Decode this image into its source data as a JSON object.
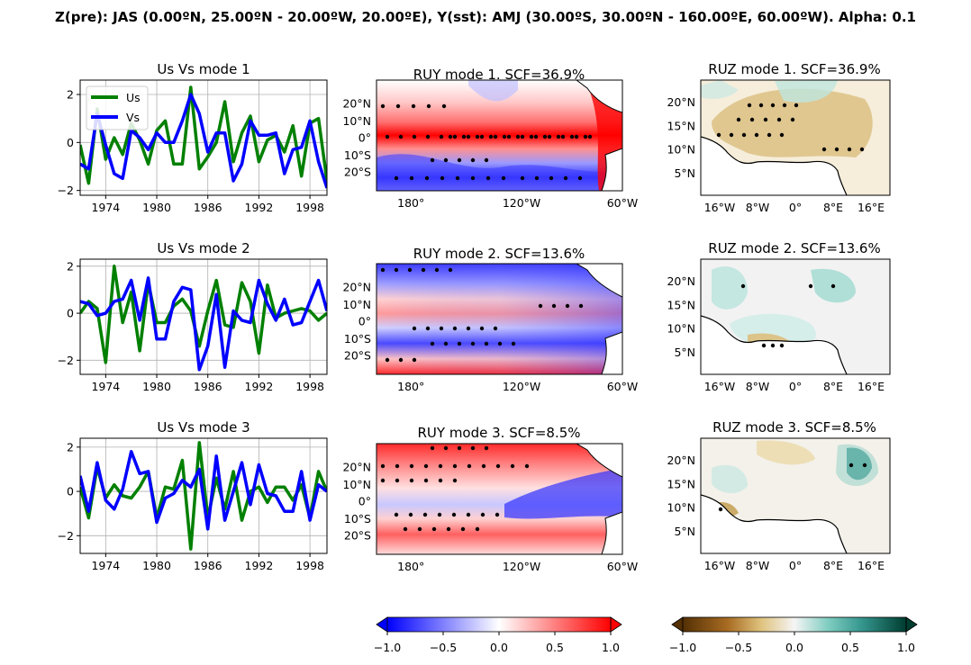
{
  "figure": {
    "title": "Z(pre): JAS (0.00ºN, 25.00ºN - 20.00ºW, 20.00ºE), Y(sst): AMJ (30.00ºS, 30.00ºN - 160.00ºE, 60.00ºW). Alpha: 0.1"
  },
  "colors": {
    "us": "#008000",
    "vs": "#0000ff"
  },
  "chart_data": [
    {
      "type": "line",
      "title": "Us Vs mode 1",
      "xlim": [
        1971,
        2000
      ],
      "ylim": [
        -2.2,
        2.6
      ],
      "xticks": [
        1974,
        1980,
        1986,
        1992,
        1998
      ],
      "xtick_labels": [
        "1974",
        "1980",
        "1986",
        "1992",
        "1998"
      ],
      "yticks": [
        -2,
        0,
        2
      ],
      "ytick_labels": [
        "−2",
        "0",
        "2"
      ],
      "grid": true,
      "legend": "top-left",
      "x": [
        1971,
        1972,
        1973,
        1974,
        1975,
        1976,
        1977,
        1978,
        1979,
        1980,
        1981,
        1982,
        1983,
        1984,
        1985,
        1986,
        1987,
        1988,
        1989,
        1990,
        1991,
        1992,
        1993,
        1994,
        1995,
        1996,
        1997,
        1998,
        1999,
        2000
      ],
      "series": [
        {
          "name": "Us",
          "color": "#008000",
          "values": [
            -0.1,
            -1.7,
            1.4,
            -0.7,
            0.2,
            -0.5,
            0.8,
            0.1,
            -0.9,
            0.5,
            0.9,
            -0.9,
            -0.9,
            2.3,
            -1.1,
            -0.6,
            0.0,
            1.7,
            -0.8,
            0.4,
            1.1,
            -0.8,
            0.1,
            0.3,
            -0.4,
            0.7,
            -1.4,
            0.8,
            1.0,
            -1.6
          ]
        },
        {
          "name": "Vs",
          "color": "#0000ff",
          "values": [
            -0.9,
            -1.1,
            1.2,
            -0.1,
            -1.3,
            -1.5,
            0.5,
            0.2,
            -0.3,
            0.4,
            0.0,
            0.0,
            0.9,
            2.0,
            1.2,
            -0.4,
            0.4,
            0.4,
            -1.6,
            -0.9,
            0.9,
            0.3,
            0.3,
            0.4,
            -1.3,
            -0.3,
            -0.2,
            0.9,
            -0.8,
            -1.9
          ]
        }
      ]
    },
    {
      "type": "line",
      "title": "Us Vs mode 2",
      "xlim": [
        1971,
        2000
      ],
      "ylim": [
        -2.6,
        2.3
      ],
      "xticks": [
        1974,
        1980,
        1986,
        1992,
        1998
      ],
      "xtick_labels": [
        "1974",
        "1980",
        "1986",
        "1992",
        "1998"
      ],
      "yticks": [
        -2,
        0,
        2
      ],
      "ytick_labels": [
        "−2",
        "0",
        "2"
      ],
      "grid": true,
      "x": [
        1971,
        1972,
        1973,
        1974,
        1975,
        1976,
        1977,
        1978,
        1979,
        1980,
        1981,
        1982,
        1983,
        1984,
        1985,
        1986,
        1987,
        1988,
        1989,
        1990,
        1991,
        1992,
        1993,
        1994,
        1995,
        1996,
        1997,
        1998,
        1999,
        2000
      ],
      "series": [
        {
          "name": "Us",
          "color": "#008000",
          "values": [
            0.0,
            0.5,
            0.2,
            -2.1,
            2.0,
            -0.4,
            0.9,
            -1.6,
            1.3,
            -0.4,
            -0.4,
            0.3,
            0.6,
            0.1,
            -1.4,
            0.1,
            1.4,
            -0.5,
            -0.6,
            1.3,
            0.5,
            -1.7,
            1.2,
            -0.2,
            0.0,
            0.1,
            0.2,
            0.1,
            -0.3,
            0.0
          ]
        },
        {
          "name": "Vs",
          "color": "#0000ff",
          "values": [
            0.5,
            0.4,
            -0.1,
            0.0,
            0.5,
            0.6,
            1.4,
            -0.3,
            1.5,
            -1.1,
            -1.1,
            0.5,
            1.1,
            1.0,
            -2.4,
            -1.4,
            0.8,
            -2.3,
            0.1,
            -0.3,
            -0.4,
            1.4,
            0.4,
            -0.3,
            0.6,
            -0.5,
            -0.4,
            0.5,
            1.4,
            0.1
          ]
        }
      ]
    },
    {
      "type": "line",
      "title": "Us Vs mode 3",
      "xlim": [
        1971,
        2000
      ],
      "ylim": [
        -2.8,
        2.4
      ],
      "xticks": [
        1974,
        1980,
        1986,
        1992,
        1998
      ],
      "xtick_labels": [
        "1974",
        "1980",
        "1986",
        "1992",
        "1998"
      ],
      "yticks": [
        -2,
        0,
        2
      ],
      "ytick_labels": [
        "−2",
        "0",
        "2"
      ],
      "grid": true,
      "x": [
        1971,
        1972,
        1973,
        1974,
        1975,
        1976,
        1977,
        1978,
        1979,
        1980,
        1981,
        1982,
        1983,
        1984,
        1985,
        1986,
        1987,
        1988,
        1989,
        1990,
        1991,
        1992,
        1993,
        1994,
        1995,
        1996,
        1997,
        1998,
        1999,
        2000
      ],
      "series": [
        {
          "name": "Us",
          "color": "#008000",
          "values": [
            0.2,
            -1.2,
            1.1,
            -0.3,
            0.3,
            -0.2,
            -0.3,
            0.2,
            0.9,
            -1.2,
            0.2,
            0.1,
            1.4,
            -2.6,
            2.2,
            -1.2,
            0.6,
            -0.8,
            0.9,
            -1.3,
            0.0,
            0.2,
            -0.5,
            0.2,
            0.2,
            -0.4,
            0.3,
            -1.2,
            0.9,
            0.0
          ]
        },
        {
          "name": "Vs",
          "color": "#0000ff",
          "values": [
            0.7,
            -0.9,
            1.3,
            -0.4,
            -0.8,
            0.1,
            1.8,
            0.8,
            0.9,
            -1.4,
            -0.3,
            -0.1,
            0.5,
            0.2,
            1.0,
            -1.7,
            1.6,
            -1.3,
            0.0,
            1.3,
            -0.6,
            1.2,
            -0.1,
            -0.2,
            -0.9,
            -0.9,
            0.9,
            -1.3,
            0.3,
            0.0
          ]
        }
      ]
    },
    {
      "type": "heatmap",
      "title": "RUY mode 1. SCF=36.9%",
      "xtick_labels": [
        "180°",
        "120°W",
        "60°W"
      ],
      "ytick_labels": [
        "20°N",
        "10°N",
        "0°",
        "10°S",
        "20°S"
      ],
      "colormap": "bwr"
    },
    {
      "type": "heatmap",
      "title": "RUY mode 2. SCF=13.6%",
      "xtick_labels": [
        "180°",
        "120°W",
        "60°W"
      ],
      "ytick_labels": [
        "20°N",
        "10°N",
        "0°",
        "10°S",
        "20°S"
      ],
      "colormap": "bwr"
    },
    {
      "type": "heatmap",
      "title": "RUY mode 3. SCF=8.5%",
      "xtick_labels": [
        "180°",
        "120°W",
        "60°W"
      ],
      "ytick_labels": [
        "20°N",
        "10°N",
        "0°",
        "10°S",
        "20°S"
      ],
      "colormap": "bwr"
    },
    {
      "type": "heatmap",
      "title": "RUZ mode 1. SCF=36.9%",
      "xtick_labels": [
        "16°W",
        "8°W",
        "0°",
        "8°E",
        "16°E"
      ],
      "ytick_labels": [
        "20°N",
        "15°N",
        "10°N",
        "5°N"
      ],
      "colormap": "BrBG"
    },
    {
      "type": "heatmap",
      "title": "RUZ mode 2. SCF=13.6%",
      "xtick_labels": [
        "16°W",
        "8°W",
        "0°",
        "8°E",
        "16°E"
      ],
      "ytick_labels": [
        "20°N",
        "15°N",
        "10°N",
        "5°N"
      ],
      "colormap": "BrBG"
    },
    {
      "type": "heatmap",
      "title": "RUZ mode 3. SCF=8.5%",
      "xtick_labels": [
        "16°W",
        "8°W",
        "0°",
        "8°E",
        "16°E"
      ],
      "ytick_labels": [
        "20°N",
        "15°N",
        "10°N",
        "5°N"
      ],
      "colormap": "BrBG"
    }
  ],
  "colorbars": [
    {
      "colormap": "bwr",
      "range": [
        -1.0,
        1.0
      ],
      "levels": 20,
      "tick_labels": [
        "−1.0",
        "−0.5",
        "0.0",
        "0.5",
        "1.0"
      ]
    },
    {
      "colormap": "BrBG",
      "range": [
        -1.0,
        1.0
      ],
      "levels": 20,
      "tick_labels": [
        "−1.0",
        "−0.5",
        "0.0",
        "0.5",
        "1.0"
      ]
    }
  ]
}
